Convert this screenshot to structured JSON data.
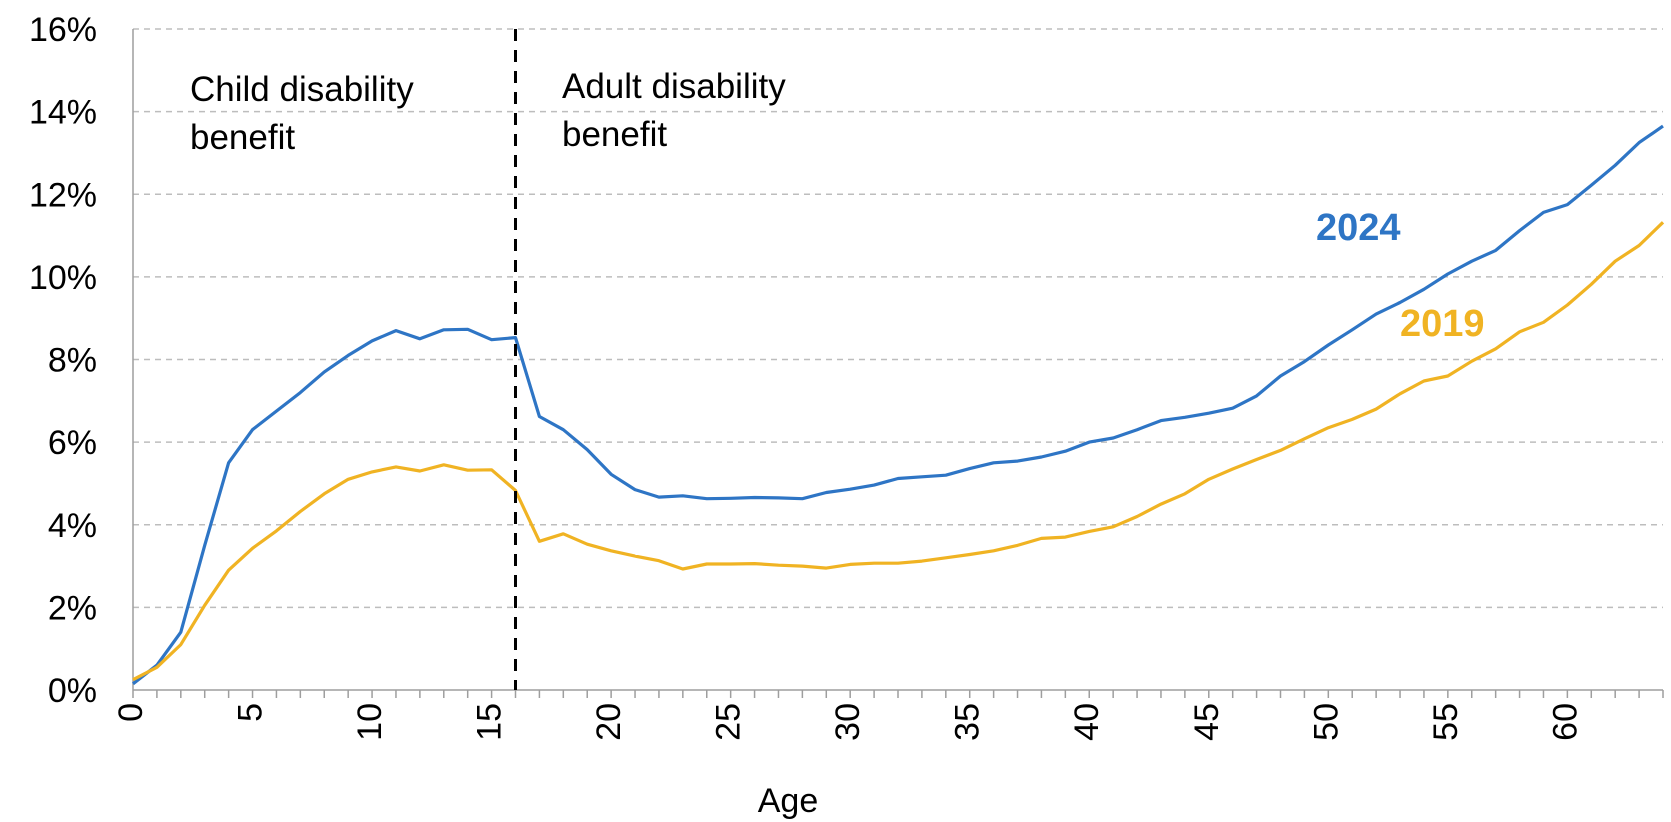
{
  "chart_data": {
    "type": "line",
    "xlabel": "Age",
    "ylabel": "",
    "xlim": [
      0,
      64
    ],
    "ylim": [
      0,
      16
    ],
    "x_ticks": [
      0,
      5,
      10,
      15,
      20,
      25,
      30,
      35,
      40,
      45,
      50,
      55,
      60
    ],
    "x_tick_labels": [
      "0",
      "5",
      "10",
      "15",
      "20",
      "25",
      "30",
      "35",
      "40",
      "45",
      "50",
      "55",
      "60"
    ],
    "y_ticks": [
      0,
      2,
      4,
      6,
      8,
      10,
      12,
      14,
      16
    ],
    "y_tick_labels": [
      "0%",
      "2%",
      "4%",
      "6%",
      "8%",
      "10%",
      "12%",
      "14%",
      "16%"
    ],
    "grid": true,
    "annotations": {
      "threshold_age": 16,
      "left": [
        "Child disability",
        "benefit"
      ],
      "right": [
        "Adult disability",
        "benefit"
      ]
    },
    "series": [
      {
        "name": "2024",
        "color": "#2e75c5",
        "values": [
          0.15,
          0.6,
          1.4,
          3.5,
          5.5,
          6.3,
          6.75,
          7.2,
          7.7,
          8.1,
          8.45,
          8.7,
          8.5,
          8.72,
          8.73,
          8.48,
          8.53,
          6.62,
          6.3,
          5.82,
          5.22,
          4.85,
          4.67,
          4.7,
          4.63,
          4.64,
          4.66,
          4.65,
          4.63,
          4.78,
          4.86,
          4.96,
          5.12,
          5.16,
          5.2,
          5.36,
          5.5,
          5.54,
          5.64,
          5.78,
          6.0,
          6.1,
          6.3,
          6.52,
          6.6,
          6.7,
          6.82,
          7.12,
          7.6,
          7.95,
          8.35,
          8.72,
          9.1,
          9.38,
          9.7,
          10.07,
          10.38,
          10.64,
          11.12,
          11.56,
          11.75,
          12.22,
          12.7,
          13.25,
          13.65
        ]
      },
      {
        "name": "2019",
        "color": "#f0b323",
        "values": [
          0.25,
          0.55,
          1.1,
          2.05,
          2.9,
          3.43,
          3.85,
          4.32,
          4.75,
          5.1,
          5.28,
          5.4,
          5.3,
          5.45,
          5.32,
          5.33,
          4.83,
          3.6,
          3.78,
          3.53,
          3.37,
          3.24,
          3.13,
          2.93,
          3.05,
          3.05,
          3.06,
          3.02,
          3.0,
          2.95,
          3.04,
          3.07,
          3.07,
          3.12,
          3.2,
          3.28,
          3.37,
          3.5,
          3.67,
          3.7,
          3.84,
          3.95,
          4.2,
          4.5,
          4.75,
          5.1,
          5.35,
          5.58,
          5.8,
          6.08,
          6.35,
          6.55,
          6.8,
          7.17,
          7.48,
          7.6,
          7.96,
          8.26,
          8.67,
          8.9,
          9.32,
          9.82,
          10.38,
          10.76,
          11.32
        ]
      }
    ]
  }
}
